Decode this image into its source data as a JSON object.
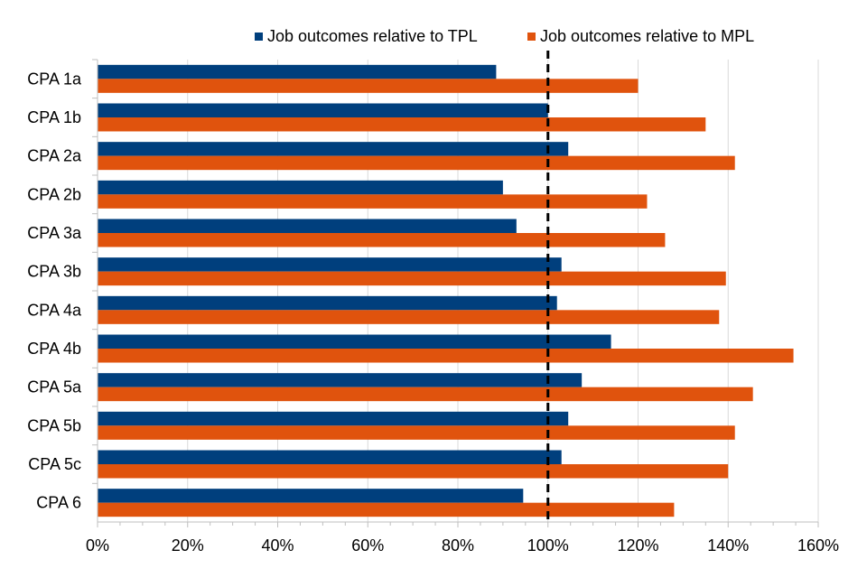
{
  "chart_data": {
    "type": "bar",
    "orientation": "horizontal",
    "categories": [
      "CPA 1a",
      "CPA 1b",
      "CPA 2a",
      "CPA 2b",
      "CPA 3a",
      "CPA 3b",
      "CPA 4a",
      "CPA 4b",
      "CPA 5a",
      "CPA 5b",
      "CPA 5c",
      "CPA 6"
    ],
    "series": [
      {
        "name": "Job outcomes relative to TPL",
        "color": "#003f7d",
        "values": [
          88.5,
          100,
          104.5,
          90,
          93,
          103,
          102,
          114,
          107.5,
          104.5,
          103,
          94.5
        ]
      },
      {
        "name": "Job outcomes relative to MPL",
        "color": "#e0530d",
        "values": [
          120,
          135,
          141.5,
          122,
          126,
          139.5,
          138,
          154.5,
          145.5,
          141.5,
          140,
          128
        ]
      }
    ],
    "xlim": [
      0,
      160
    ],
    "xticks": [
      0,
      20,
      40,
      60,
      80,
      100,
      120,
      140,
      160
    ],
    "tick_labels": [
      "0%",
      "20%",
      "40%",
      "60%",
      "80%",
      "100%",
      "120%",
      "140%",
      "160%"
    ],
    "reference_line": 100,
    "grid": true,
    "legend": "top",
    "title": "",
    "xlabel": "",
    "ylabel": ""
  }
}
